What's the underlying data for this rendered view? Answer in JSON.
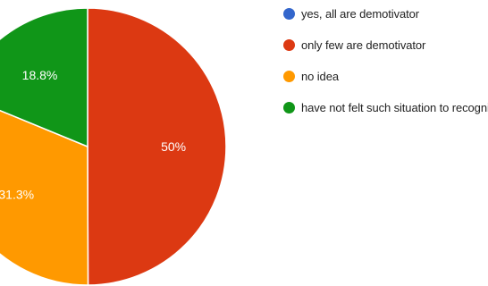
{
  "chart_data": {
    "type": "pie",
    "legend_position": "right",
    "series": [
      {
        "name": "yes, all are demotivator",
        "value": 0,
        "label": "",
        "color": "#3366cc"
      },
      {
        "name": "only few are demotivator",
        "value": 50,
        "label": "50%",
        "color": "#dc3912"
      },
      {
        "name": "no idea",
        "value": 31.3,
        "label": "31.3%",
        "color": "#ff9900"
      },
      {
        "name": "have not felt such situation to recognize",
        "value": 18.8,
        "label": "18.8%",
        "color": "#109618"
      }
    ]
  }
}
